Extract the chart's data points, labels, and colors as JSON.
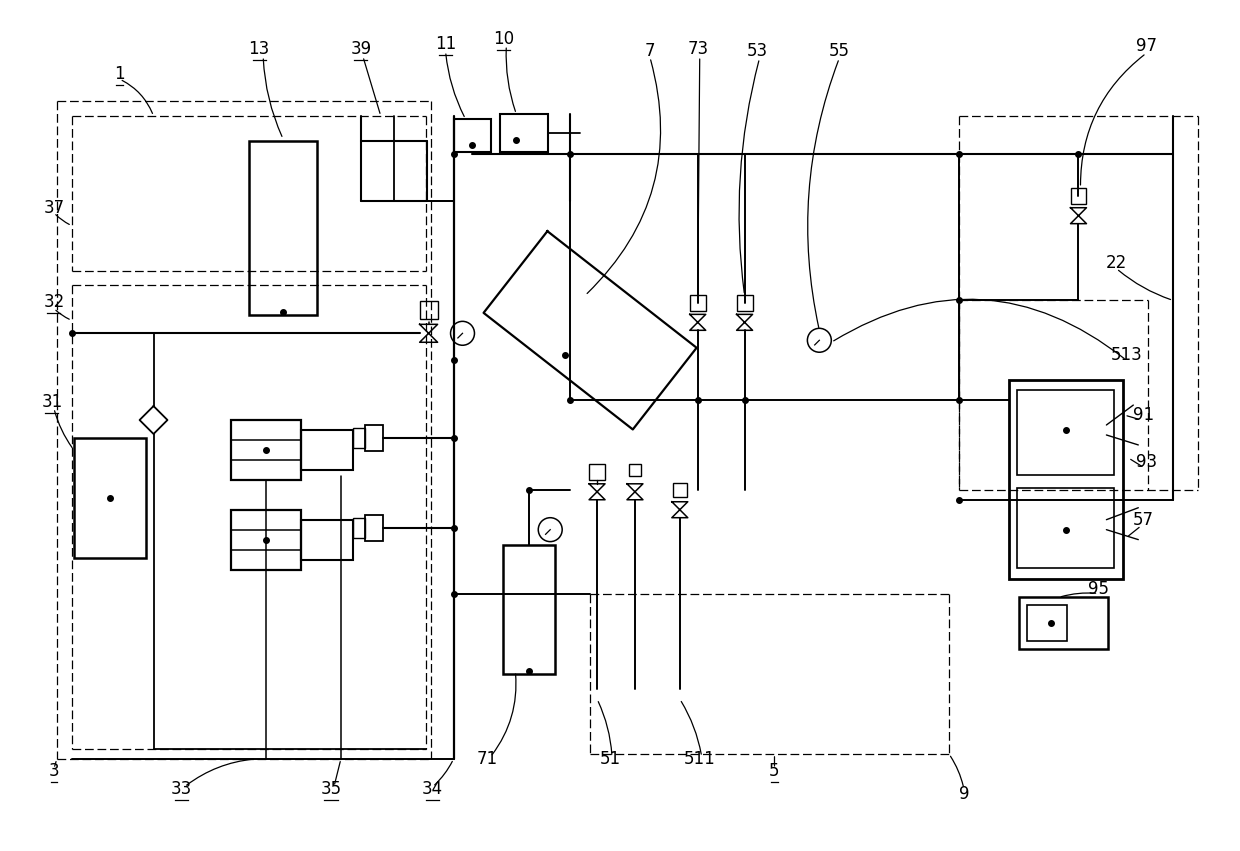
{
  "bg_color": "#ffffff",
  "figsize": [
    12.4,
    8.51
  ],
  "dpi": 100
}
